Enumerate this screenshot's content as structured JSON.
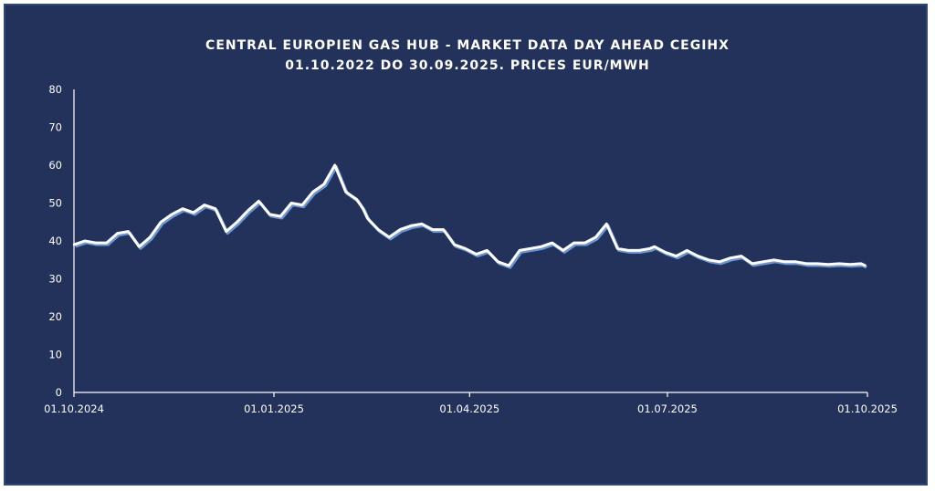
{
  "colors": {
    "background": "#22325a",
    "line": "#ffffff",
    "shadow": "#6a95d6",
    "axis": "#ffffff"
  },
  "chart_data": {
    "type": "line",
    "title": "CENTRAL EUROPIEN GAS HUB - MARKET DATA DAY AHEAD CEGIHX",
    "subtitle": "01.10.2022 DO 30.09.2025. PRICES EUR/MWH",
    "xlabel": "",
    "ylabel": "",
    "ylim": [
      0,
      80
    ],
    "yticks": [
      "0",
      "10",
      "20",
      "30",
      "40",
      "50",
      "60",
      "70",
      "80"
    ],
    "xticks": [
      "01.10.2024",
      "01.01.2025",
      "01.04.2025",
      "01.07.2025",
      "01.10.2025"
    ],
    "xrange": [
      "2024-10-01",
      "2025-10-01"
    ],
    "grid": false,
    "legend": "none",
    "series": [
      {
        "name": "",
        "x": [
          "2024-10-01",
          "2024-10-06",
          "2024-10-11",
          "2024-10-16",
          "2024-10-21",
          "2024-10-26",
          "2024-10-31",
          "2024-11-05",
          "2024-11-10",
          "2024-11-15",
          "2024-11-20",
          "2024-11-25",
          "2024-11-30",
          "2024-12-05",
          "2024-12-10",
          "2024-12-15",
          "2024-12-20",
          "2024-12-25",
          "2024-12-30",
          "2025-01-04",
          "2025-01-09",
          "2025-01-14",
          "2025-01-19",
          "2025-01-24",
          "2025-01-29",
          "2025-02-03",
          "2025-02-08",
          "2025-02-11",
          "2025-02-13",
          "2025-02-18",
          "2025-02-23",
          "2025-02-28",
          "2025-03-05",
          "2025-03-10",
          "2025-03-15",
          "2025-03-20",
          "2025-03-25",
          "2025-03-30",
          "2025-04-04",
          "2025-04-09",
          "2025-04-14",
          "2025-04-19",
          "2025-04-24",
          "2025-04-29",
          "2025-05-04",
          "2025-05-09",
          "2025-05-14",
          "2025-05-19",
          "2025-05-24",
          "2025-05-29",
          "2025-06-03",
          "2025-06-08",
          "2025-06-13",
          "2025-06-18",
          "2025-06-23",
          "2025-06-25",
          "2025-06-30",
          "2025-07-05",
          "2025-07-10",
          "2025-07-15",
          "2025-07-20",
          "2025-07-25",
          "2025-07-30",
          "2025-08-04",
          "2025-08-09",
          "2025-08-14",
          "2025-08-19",
          "2025-08-24",
          "2025-08-29",
          "2025-09-03",
          "2025-09-08",
          "2025-09-13",
          "2025-09-18",
          "2025-09-23",
          "2025-09-28",
          "2025-09-30"
        ],
        "values": [
          39,
          40,
          39.5,
          39.5,
          42,
          42.5,
          38.5,
          41,
          45,
          47,
          48.5,
          47.5,
          49.5,
          48.5,
          42.5,
          45,
          48,
          50.5,
          47,
          46.5,
          50,
          49.5,
          53,
          55,
          60,
          53,
          51,
          48.5,
          46,
          43,
          41,
          43,
          44,
          44.5,
          43,
          43,
          39,
          38,
          36.5,
          37.5,
          34.5,
          33.5,
          37.5,
          38,
          38.5,
          39.5,
          37.5,
          39.5,
          39.5,
          41,
          44.5,
          38,
          37.5,
          37.5,
          38,
          38.5,
          37,
          36,
          37.5,
          36,
          35,
          34.5,
          35.5,
          36,
          34,
          34.5,
          35,
          34.5,
          34.5,
          34,
          34,
          33.8,
          34,
          33.8,
          34,
          33.5
        ]
      }
    ]
  }
}
